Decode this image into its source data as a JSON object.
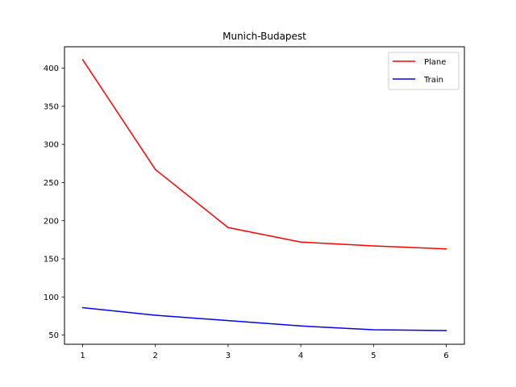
{
  "chart_data": {
    "type": "line",
    "title": "Munich-Budapest",
    "xlabel": "",
    "ylabel": "",
    "x": [
      1,
      2,
      3,
      4,
      5,
      6
    ],
    "xlim": [
      0.75,
      6.25
    ],
    "ylim": [
      38,
      428
    ],
    "xticks": [
      1,
      2,
      3,
      4,
      5,
      6
    ],
    "yticks": [
      50,
      100,
      150,
      200,
      250,
      300,
      350,
      400
    ],
    "grid": false,
    "legend_position": "top-right",
    "series": [
      {
        "name": "Plane",
        "color": "#ff0000",
        "values": [
          411,
          267,
          191,
          172,
          167,
          163
        ]
      },
      {
        "name": "Train",
        "color": "#0000ff",
        "values": [
          86,
          76,
          69,
          62,
          57,
          56
        ]
      }
    ]
  }
}
